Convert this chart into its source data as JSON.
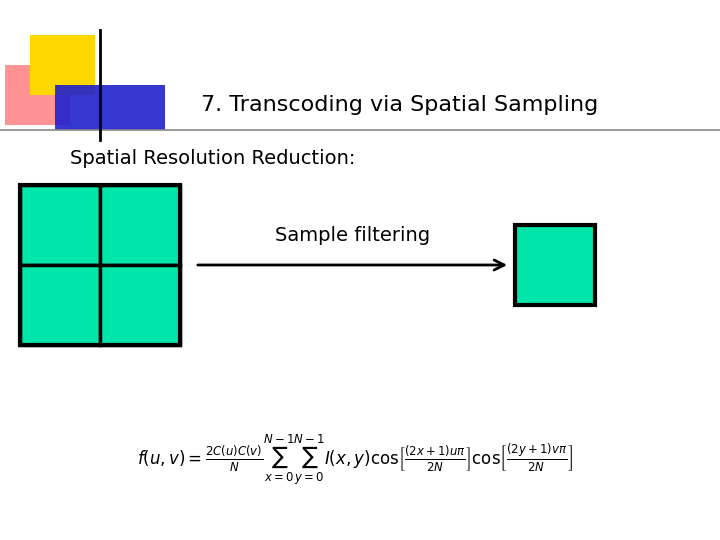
{
  "title": "7. Transcoding via Spatial Sampling",
  "subtitle": "Spatial Resolution Reduction:",
  "label_arrow": "Sample filtering",
  "cyan_color": "#00E5AA",
  "black_color": "#000000",
  "bg_color": "#ffffff",
  "title_fontsize": 16,
  "subtitle_fontsize": 14,
  "arrow_label_fontsize": 14,
  "formula_fontsize": 12,
  "logo_yellow": "#FFD700",
  "logo_red": "#FF8080",
  "logo_blue": "#2020CC"
}
